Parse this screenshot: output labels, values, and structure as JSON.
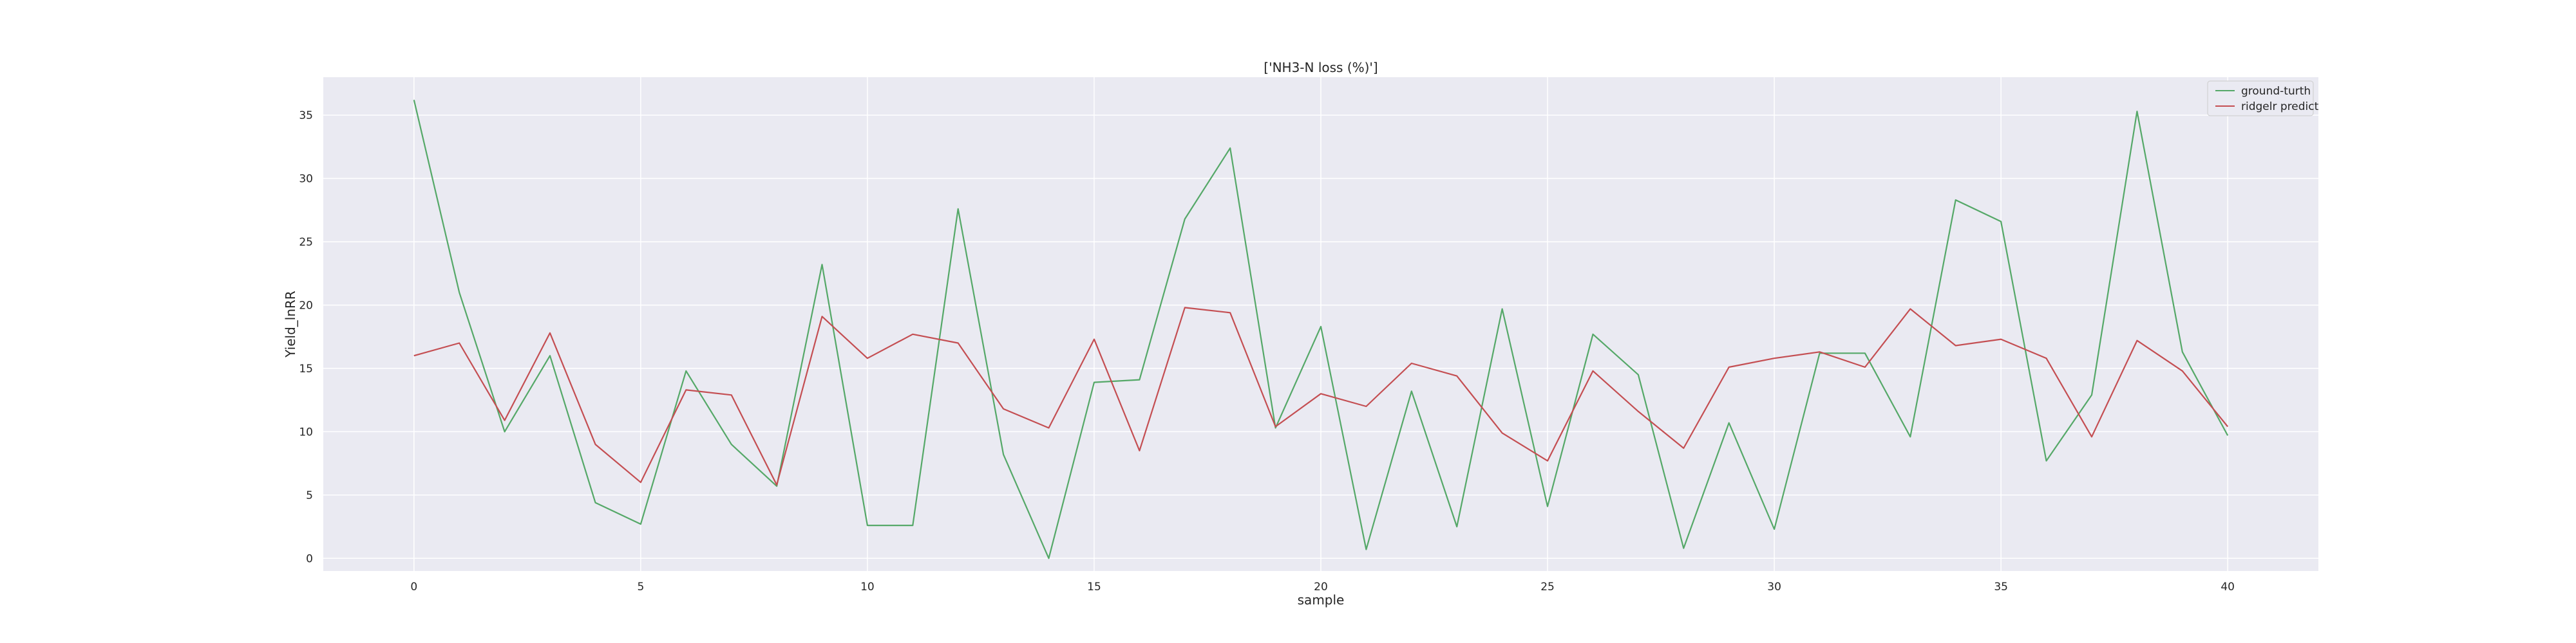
{
  "chart_data": {
    "type": "line",
    "title": "['NH3-N loss (%)']",
    "xlabel": "sample",
    "ylabel": "Yield_lnRR",
    "xlim": [
      -2,
      42
    ],
    "ylim": [
      -1,
      38
    ],
    "xticks": [
      0,
      5,
      10,
      15,
      20,
      25,
      30,
      35,
      40
    ],
    "yticks": [
      0,
      5,
      10,
      15,
      20,
      25,
      30,
      35
    ],
    "grid": true,
    "legend_position": "top-right",
    "x": [
      0,
      1,
      2,
      3,
      4,
      5,
      6,
      7,
      8,
      9,
      10,
      11,
      12,
      13,
      14,
      15,
      16,
      17,
      18,
      19,
      20,
      21,
      22,
      23,
      24,
      25,
      26,
      27,
      28,
      29,
      30,
      31,
      32,
      33,
      34,
      35,
      36,
      37,
      38,
      39,
      40
    ],
    "series": [
      {
        "name": "ground-turth",
        "color": "#55a868",
        "values": [
          36.2,
          21.0,
          10.0,
          16.0,
          4.4,
          2.7,
          14.8,
          9.0,
          5.7,
          23.2,
          2.6,
          2.6,
          27.6,
          8.2,
          0.0,
          13.9,
          14.1,
          26.8,
          32.4,
          10.3,
          18.3,
          0.7,
          13.2,
          2.5,
          19.7,
          4.1,
          17.7,
          14.5,
          0.8,
          10.7,
          2.3,
          16.2,
          16.2,
          9.6,
          28.3,
          26.6,
          7.7,
          12.9,
          35.3,
          16.3,
          9.7
        ]
      },
      {
        "name": "ridgelr predict",
        "color": "#c44e52",
        "values": [
          16.0,
          17.0,
          10.9,
          17.8,
          9.0,
          6.0,
          13.3,
          12.9,
          5.8,
          19.1,
          15.8,
          17.7,
          17.0,
          11.8,
          10.3,
          17.3,
          8.5,
          19.8,
          19.4,
          10.4,
          13.0,
          12.0,
          15.4,
          14.4,
          9.9,
          7.7,
          14.8,
          11.6,
          8.7,
          15.1,
          15.8,
          16.3,
          15.1,
          19.7,
          16.8,
          17.3,
          15.8,
          9.6,
          17.2,
          14.8,
          10.4
        ]
      }
    ]
  }
}
